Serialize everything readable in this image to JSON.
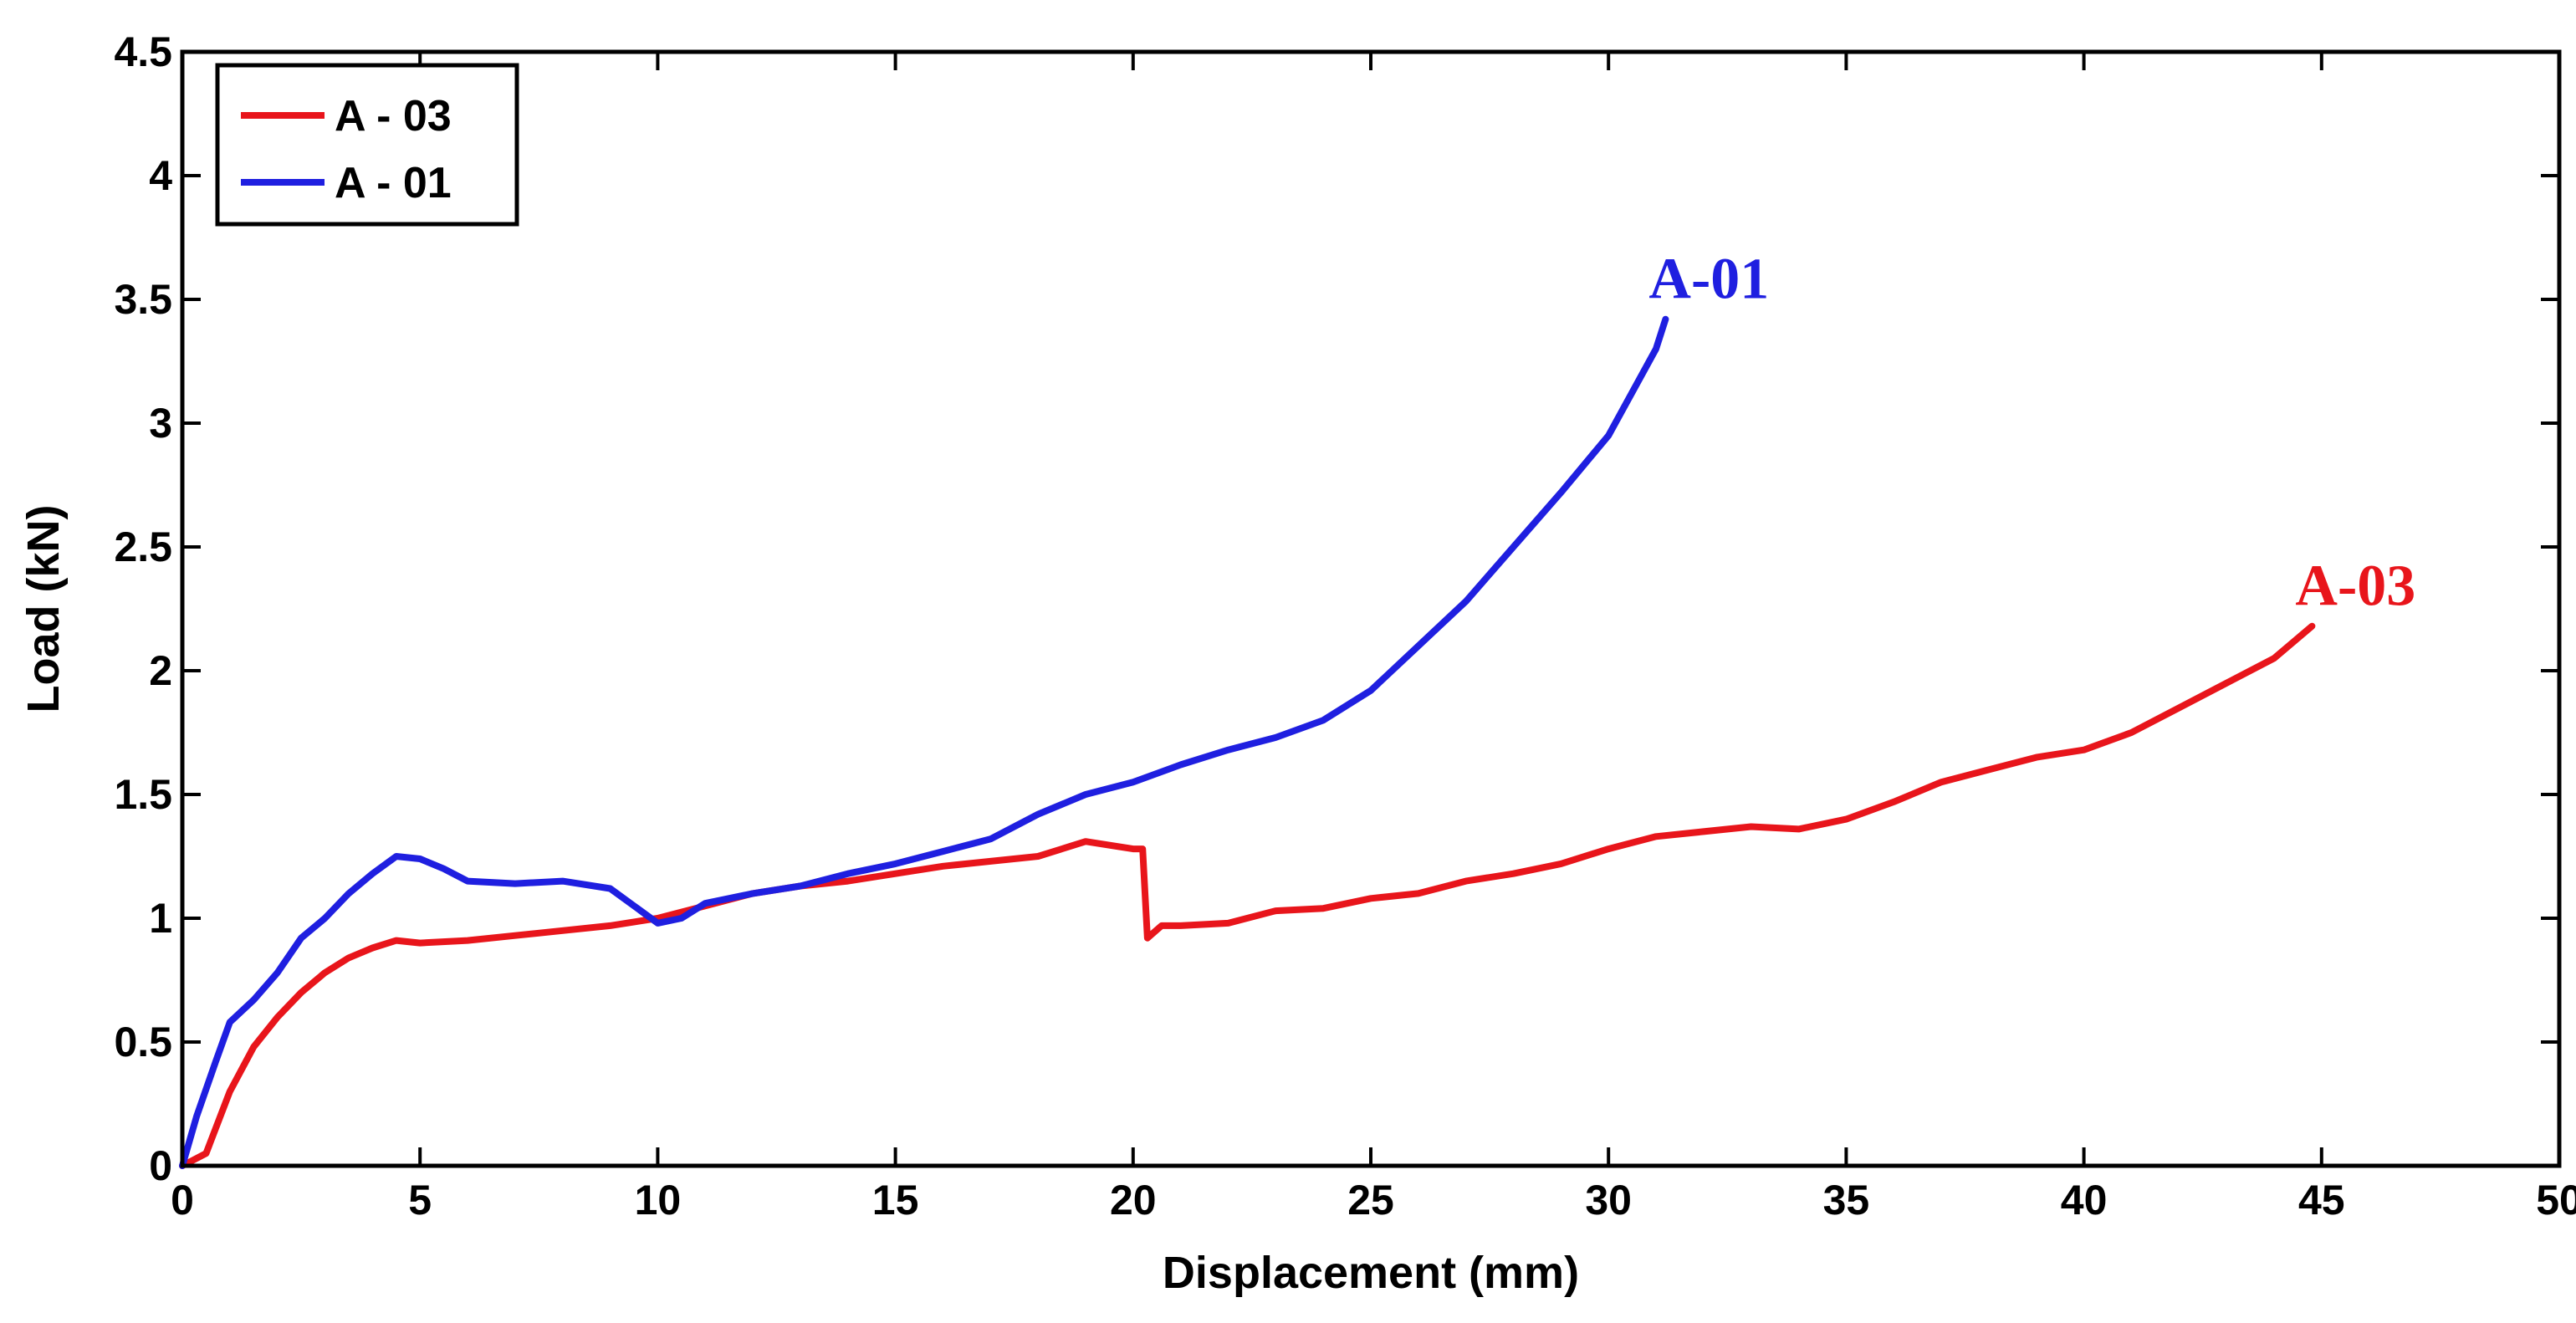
{
  "chart_data": {
    "type": "line",
    "title": "",
    "xlabel": "Displacement (mm)",
    "ylabel": "Load (kN)",
    "xlim": [
      0,
      50
    ],
    "ylim": [
      0,
      4.5
    ],
    "xticks": [
      "0",
      "5",
      "10",
      "15",
      "20",
      "25",
      "30",
      "35",
      "40",
      "45",
      "50"
    ],
    "yticks": [
      "0",
      "0.5",
      "1",
      "1.5",
      "2",
      "2.5",
      "3",
      "3.5",
      "4",
      "4.5"
    ],
    "grid": false,
    "legend_position": "top-left",
    "legend": [
      {
        "label": "A - 03",
        "color": "#e8151b"
      },
      {
        "label": "A - 01",
        "color": "#1f1fe0"
      }
    ],
    "annotations": [
      {
        "text": "A-01",
        "x": 31.2,
        "y": 3.42,
        "color": "#1f1fe0"
      },
      {
        "text": "A-03",
        "x": 44.8,
        "y": 2.18,
        "color": "#e8151b"
      }
    ],
    "series": [
      {
        "name": "A - 03",
        "color": "#e8151b",
        "x": [
          0,
          0.5,
          1,
          1.5,
          2,
          2.5,
          3,
          3.5,
          4,
          4.5,
          5,
          6,
          7,
          8,
          9,
          10,
          11,
          12,
          13,
          14,
          15,
          16,
          17,
          18,
          19,
          20,
          20.2,
          20.3,
          20.6,
          21,
          22,
          23,
          24,
          25,
          26,
          27,
          28,
          29,
          30,
          31,
          32,
          33,
          34,
          35,
          36,
          37,
          38,
          39,
          40,
          41,
          42,
          43,
          44,
          44.8
        ],
        "y": [
          0,
          0.05,
          0.3,
          0.48,
          0.6,
          0.7,
          0.78,
          0.84,
          0.88,
          0.91,
          0.9,
          0.91,
          0.93,
          0.95,
          0.97,
          1.0,
          1.05,
          1.1,
          1.13,
          1.15,
          1.18,
          1.21,
          1.23,
          1.25,
          1.31,
          1.28,
          1.28,
          0.92,
          0.97,
          0.97,
          0.98,
          1.03,
          1.04,
          1.08,
          1.1,
          1.15,
          1.18,
          1.22,
          1.28,
          1.33,
          1.35,
          1.37,
          1.36,
          1.4,
          1.47,
          1.55,
          1.6,
          1.65,
          1.68,
          1.75,
          1.85,
          1.95,
          2.05,
          2.18
        ]
      },
      {
        "name": "A - 01",
        "color": "#1f1fe0",
        "x": [
          0,
          0.3,
          0.7,
          1,
          1.5,
          2,
          2.5,
          3,
          3.5,
          4,
          4.5,
          5,
          5.5,
          6,
          7,
          8,
          9,
          9.5,
          10,
          10.5,
          11,
          12,
          13,
          14,
          15,
          16,
          17,
          18,
          19,
          20,
          21,
          22,
          23,
          24,
          25,
          26,
          27,
          28,
          29,
          30,
          31,
          31.2
        ],
        "y": [
          0,
          0.2,
          0.42,
          0.58,
          0.67,
          0.78,
          0.92,
          1.0,
          1.1,
          1.18,
          1.25,
          1.24,
          1.2,
          1.15,
          1.14,
          1.15,
          1.12,
          1.05,
          0.98,
          1.0,
          1.06,
          1.1,
          1.13,
          1.18,
          1.22,
          1.27,
          1.32,
          1.42,
          1.5,
          1.55,
          1.62,
          1.68,
          1.73,
          1.8,
          1.92,
          2.1,
          2.28,
          2.5,
          2.72,
          2.95,
          3.3,
          3.42
        ]
      }
    ]
  }
}
